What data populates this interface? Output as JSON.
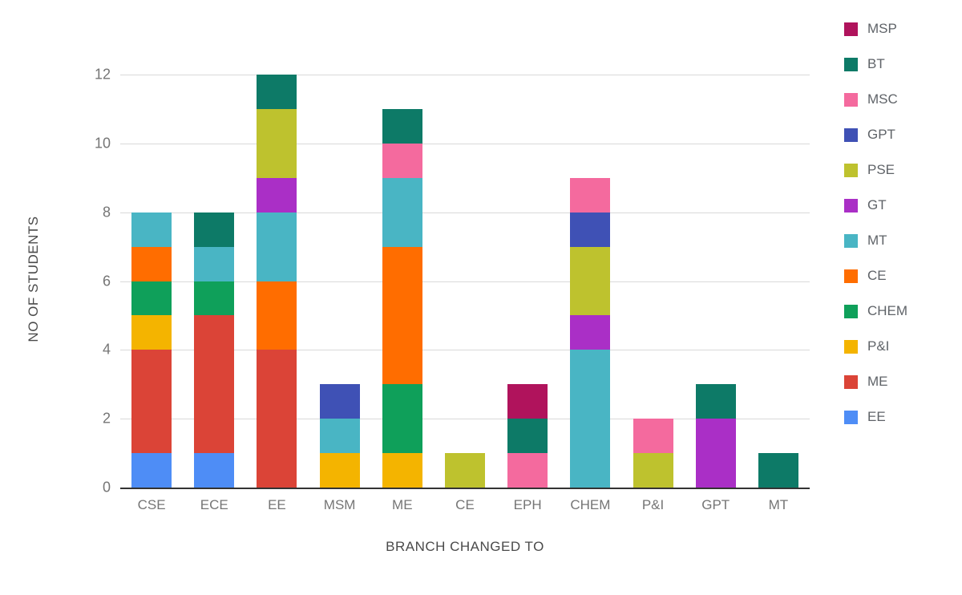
{
  "chart_data": {
    "type": "bar",
    "stacked": true,
    "title": "",
    "xlabel": "BRANCH CHANGED TO",
    "ylabel": "NO OF STUDENTS",
    "ylim": [
      0,
      12
    ],
    "yticks": [
      0,
      2,
      4,
      6,
      8,
      10,
      12
    ],
    "grid": true,
    "legend_position": "right",
    "categories": [
      "CSE",
      "ECE",
      "EE",
      "MSM",
      "ME",
      "CE",
      "EPH",
      "CHEM",
      "P&I",
      "GPT",
      "MT"
    ],
    "series": [
      {
        "name": "EE",
        "color": "#4e8df6",
        "values": [
          1,
          1,
          0,
          0,
          0,
          0,
          0,
          0,
          0,
          0,
          0
        ]
      },
      {
        "name": "ME",
        "color": "#db4437",
        "values": [
          3,
          4,
          4,
          0,
          0,
          0,
          0,
          0,
          0,
          0,
          0
        ]
      },
      {
        "name": "P&I",
        "color": "#f4b400",
        "values": [
          1,
          0,
          0,
          1,
          1,
          0,
          0,
          0,
          0,
          0,
          0
        ]
      },
      {
        "name": "CHEM",
        "color": "#0fa05a",
        "values": [
          1,
          1,
          0,
          0,
          2,
          0,
          0,
          0,
          0,
          0,
          0
        ]
      },
      {
        "name": "CE",
        "color": "#ff6d00",
        "values": [
          1,
          0,
          2,
          0,
          4,
          0,
          0,
          0,
          0,
          0,
          0
        ]
      },
      {
        "name": "MT",
        "color": "#49b5c4",
        "values": [
          1,
          1,
          2,
          1,
          2,
          0,
          0,
          4,
          0,
          0,
          0
        ]
      },
      {
        "name": "GT",
        "color": "#aa2fc6",
        "values": [
          0,
          0,
          1,
          0,
          0,
          0,
          0,
          1,
          0,
          2,
          0
        ]
      },
      {
        "name": "PSE",
        "color": "#bec22e",
        "values": [
          0,
          0,
          2,
          0,
          0,
          1,
          0,
          2,
          1,
          0,
          0
        ]
      },
      {
        "name": "GPT",
        "color": "#3f51b5",
        "values": [
          0,
          0,
          0,
          1,
          0,
          0,
          0,
          1,
          0,
          0,
          0
        ]
      },
      {
        "name": "MSC",
        "color": "#f46a9e",
        "values": [
          0,
          0,
          0,
          0,
          1,
          0,
          1,
          1,
          1,
          0,
          0
        ]
      },
      {
        "name": "BT",
        "color": "#0d7a67",
        "values": [
          0,
          1,
          1,
          0,
          1,
          0,
          1,
          0,
          0,
          1,
          1
        ]
      },
      {
        "name": "MSP",
        "color": "#b0135c",
        "values": [
          0,
          0,
          0,
          0,
          0,
          0,
          1,
          0,
          0,
          0,
          0
        ]
      }
    ],
    "legend_order": [
      "MSP",
      "BT",
      "MSC",
      "GPT",
      "PSE",
      "GT",
      "MT",
      "CE",
      "CHEM",
      "P&I",
      "ME",
      "EE"
    ]
  }
}
